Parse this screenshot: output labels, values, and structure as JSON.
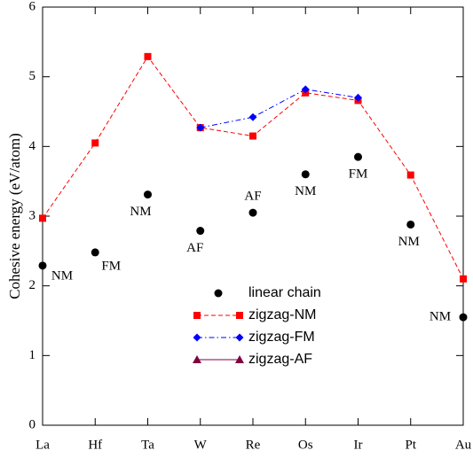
{
  "chart_data": {
    "type": "line",
    "y_label": "Cohesive energy (eV/atom)",
    "categories": [
      "La",
      "Hf",
      "Ta",
      "W",
      "Re",
      "Os",
      "Ir",
      "Pt",
      "Au"
    ],
    "ylim": [
      0,
      6
    ],
    "yticks": [
      0,
      1,
      2,
      3,
      4,
      5,
      6
    ],
    "series": [
      {
        "name": "linear chain",
        "color": "#000000",
        "line": "none",
        "marker": "circle",
        "values": [
          2.29,
          2.48,
          3.31,
          2.79,
          3.05,
          3.6,
          3.85,
          2.88,
          1.55
        ],
        "labels": [
          "NM",
          "FM",
          "NM",
          "AF",
          "AF",
          "NM",
          "FM",
          "NM",
          "NM"
        ]
      },
      {
        "name": "zigzag-NM",
        "color": "#ff0000",
        "line": "dashed",
        "marker": "square",
        "values": [
          2.97,
          4.05,
          5.29,
          4.27,
          4.15,
          4.77,
          4.66,
          3.59,
          2.1
        ]
      },
      {
        "name": "zigzag-FM",
        "color": "#0000ff",
        "line": "dashdot",
        "marker": "diamond",
        "values": [
          null,
          null,
          null,
          4.27,
          4.42,
          4.82,
          4.7,
          null,
          null
        ]
      },
      {
        "name": "zigzag-AF",
        "color": "#800040",
        "line": "solid",
        "marker": "triangle",
        "values": [
          null,
          null,
          null,
          null,
          null,
          null,
          null,
          null,
          null
        ]
      }
    ]
  }
}
